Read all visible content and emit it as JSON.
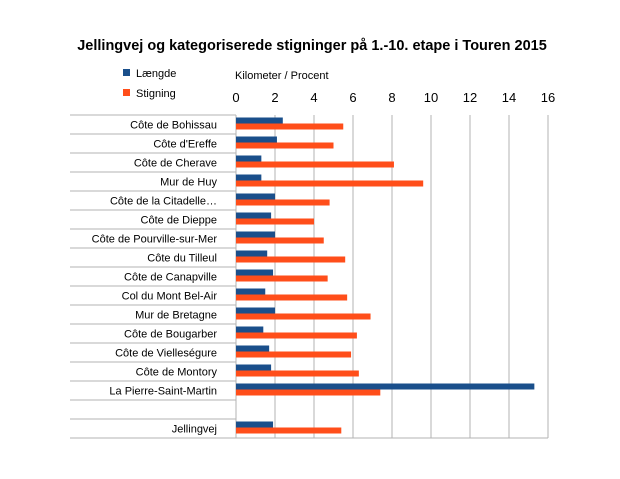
{
  "chart_data": {
    "type": "bar",
    "orientation": "horizontal",
    "title": "Jellingvej og kategoriserede stigninger på 1.-10. etape i Touren 2015",
    "xlabel": "Kilometer / Procent",
    "xlim": [
      0,
      16
    ],
    "xticks": [
      0,
      2,
      4,
      6,
      8,
      10,
      12,
      14,
      16
    ],
    "legend_position": "top-left",
    "gridlines": "vertical",
    "categories": [
      "Côte de Bohissau",
      "Côte d'Ereffe",
      "Côte de Cherave",
      "Mur de Huy",
      "Côte de la Citadelle…",
      "Côte de Dieppe",
      "Côte de Pourville-sur-Mer",
      "Côte du Tilleul",
      "Côte de Canapville",
      "Col du Mont Bel-Air",
      "Mur de Bretagne",
      "Côte de Bougarber",
      "Côte de Vielleségure",
      "Côte de Montory",
      "La Pierre-Saint-Martin",
      "",
      "Jellingvej"
    ],
    "series": [
      {
        "name": "Længde",
        "color": "#1a4f8b",
        "values": [
          2.4,
          2.1,
          1.3,
          1.3,
          2.0,
          1.8,
          2.0,
          1.6,
          1.9,
          1.5,
          2.0,
          1.4,
          1.7,
          1.8,
          15.3,
          null,
          1.9
        ]
      },
      {
        "name": "Stigning",
        "color": "#ff4e1a",
        "values": [
          5.5,
          5.0,
          8.1,
          9.6,
          4.8,
          4.0,
          4.5,
          5.6,
          4.7,
          5.7,
          6.9,
          6.2,
          5.9,
          6.3,
          7.4,
          null,
          5.4
        ]
      }
    ]
  }
}
